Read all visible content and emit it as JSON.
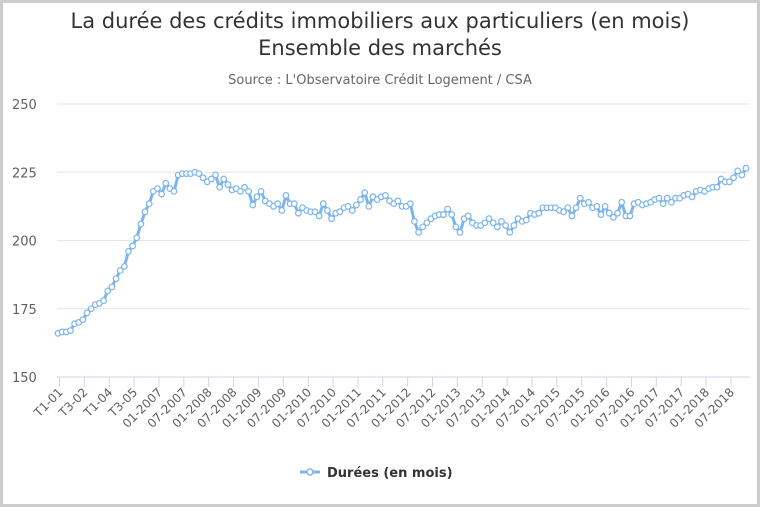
{
  "chart_data": {
    "type": "line",
    "title": "La durée des crédits immobiliers aux particuliers (en mois)",
    "title_line2": "Ensemble des marchés",
    "subtitle": "Source : L'Observatoire Crédit Logement / CSA",
    "xlabel": "",
    "ylabel": "",
    "ylim": [
      150,
      250
    ],
    "yticks": [
      150,
      175,
      200,
      225,
      250
    ],
    "xtick_labels": [
      "T1-01",
      "T3-02",
      "T1-04",
      "T3-05",
      "01-2007",
      "07-2007",
      "01-2008",
      "07-2008",
      "01-2009",
      "07-2009",
      "01-2010",
      "07-2010",
      "01-2011",
      "07-2011",
      "01-2012",
      "07-2012",
      "01-2013",
      "07-2013",
      "01-2014",
      "07-2014",
      "01-2015",
      "07-2015",
      "01-2016",
      "07-2016",
      "01-2017",
      "07-2017",
      "01-2018",
      "07-2018"
    ],
    "points_per_tick": 6,
    "grid": true,
    "legend_position": "bottom-center",
    "color": "#7cb5ec",
    "series": [
      {
        "name": "Durées (en mois)",
        "marker": "circle",
        "values": [
          166,
          166.5,
          166.5,
          167,
          169.5,
          170,
          171,
          173.5,
          175,
          176.5,
          177,
          178,
          181.5,
          183,
          186,
          189,
          190.5,
          196,
          198,
          201,
          206,
          210.5,
          213.5,
          218,
          219,
          217,
          221,
          219,
          218,
          224,
          224.5,
          224.5,
          224.5,
          225,
          224.5,
          223,
          221.5,
          222.5,
          224,
          219.5,
          222.5,
          220.5,
          218.5,
          219,
          218,
          219.5,
          218,
          213,
          216,
          218,
          214.5,
          213.5,
          212.5,
          213.5,
          211,
          216.5,
          213.5,
          213.5,
          210,
          212,
          211,
          210.5,
          210.5,
          209,
          213.5,
          211,
          208,
          210,
          210.5,
          212,
          212.5,
          211,
          213,
          215,
          217.5,
          212.5,
          216,
          215,
          216,
          216.5,
          214.5,
          213.5,
          214.5,
          212.5,
          212.5,
          213.5,
          207,
          203,
          205,
          206.5,
          208,
          209,
          209.5,
          209.5,
          211.5,
          209.5,
          205,
          203,
          208,
          209,
          206.5,
          205.5,
          205.5,
          206.5,
          208,
          206.5,
          205,
          207,
          205.5,
          203,
          205.5,
          208,
          207,
          207.5,
          210,
          209.5,
          210,
          212,
          212,
          212,
          212,
          211,
          210.5,
          212,
          209,
          212,
          215.5,
          213.5,
          214,
          212,
          212.5,
          209.5,
          212.5,
          210,
          208.5,
          210,
          214,
          209,
          209,
          213.5,
          214,
          213,
          213.5,
          214,
          215,
          215.5,
          213.5,
          215.5,
          214,
          215.5,
          215.5,
          216.5,
          217,
          216,
          218,
          218.5,
          218,
          219,
          219.5,
          219.5,
          222.5,
          221.5,
          221.5,
          223,
          225.5,
          224,
          226.5
        ]
      }
    ]
  }
}
